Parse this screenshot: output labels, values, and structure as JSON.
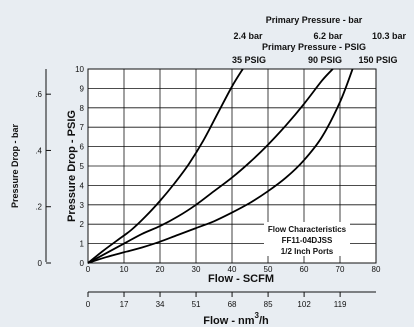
{
  "chart_data": {
    "type": "line",
    "top_scales": {
      "bar_title": "Primary Pressure - bar",
      "bar_values": [
        "2.4 bar",
        "6.2 bar",
        "10.3 bar"
      ],
      "psig_title": "Primary Pressure - PSIG",
      "psig_values": [
        "35 PSIG",
        "90 PSIG",
        "150 PSIG"
      ]
    },
    "xlabel": "Flow - SCFM",
    "ylabel": "Pressure Drop - PSIG",
    "x_ticks": [
      "0",
      "10",
      "20",
      "30",
      "40",
      "50",
      "60",
      "70",
      "80"
    ],
    "y_ticks": [
      "0",
      "1",
      "2",
      "3",
      "4",
      "5",
      "6",
      "7",
      "8",
      "9",
      "10"
    ],
    "xlim": [
      0,
      80
    ],
    "ylim": [
      0,
      10
    ],
    "secondary_x": {
      "label": "Flow - nm",
      "label_superscript": "3",
      "label_suffix": "/h",
      "ticks": [
        "0",
        "17",
        "34",
        "51",
        "68",
        "85",
        "102",
        "119"
      ]
    },
    "secondary_y": {
      "label": "Pressure Drop - bar",
      "ticks": [
        "0",
        ".2",
        ".4",
        ".6"
      ]
    },
    "annotation": [
      "Flow Characteristics",
      "FF11-04DJSS",
      "1/2 Inch Ports"
    ],
    "grid": true,
    "series": [
      {
        "label": "35 PSIG",
        "x": [
          0,
          4,
          8,
          12,
          16,
          20,
          24,
          28,
          32,
          36,
          40,
          43
        ],
        "y": [
          0,
          0.6,
          1.15,
          1.7,
          2.4,
          3.2,
          4.1,
          5.1,
          6.3,
          7.7,
          9.1,
          10
        ]
      },
      {
        "label": "90 PSIG",
        "x": [
          0,
          5,
          10,
          15,
          20,
          25,
          30,
          35,
          40,
          45,
          50,
          55,
          60,
          65,
          68
        ],
        "y": [
          0,
          0.5,
          1.0,
          1.5,
          1.9,
          2.4,
          3.0,
          3.7,
          4.4,
          5.2,
          6.1,
          7.1,
          8.2,
          9.4,
          10
        ]
      },
      {
        "label": "150 PSIG",
        "x": [
          0,
          5,
          10,
          15,
          20,
          25,
          30,
          35,
          40,
          45,
          50,
          55,
          60,
          65,
          70,
          73.5
        ],
        "y": [
          0,
          0.3,
          0.55,
          0.8,
          1.1,
          1.45,
          1.8,
          2.15,
          2.6,
          3.1,
          3.7,
          4.4,
          5.3,
          6.5,
          8.3,
          10
        ]
      }
    ]
  }
}
